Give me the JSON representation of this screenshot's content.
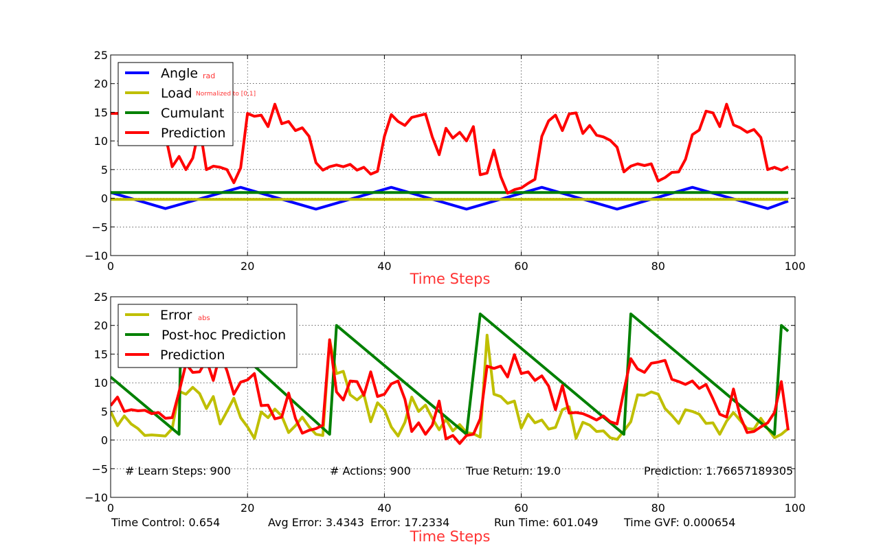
{
  "chart_data": [
    {
      "type": "line",
      "xlabel": "Time Steps",
      "xlim": [
        0,
        100
      ],
      "ylim": [
        -10,
        25
      ],
      "xticks": [
        "0",
        "20",
        "40",
        "60",
        "80",
        "100"
      ],
      "yticks": [
        "−10",
        "−5",
        "0",
        "5",
        "10",
        "15",
        "20",
        "25"
      ],
      "grid": true,
      "legend_position": "top-left",
      "legend": [
        {
          "label": "Angle",
          "sub": "rad"
        },
        {
          "label": "Load",
          "sub": "Normalized to [0,1]"
        },
        {
          "label": "Cumulant",
          "sub": ""
        },
        {
          "label": "Prediction",
          "sub": ""
        }
      ],
      "series": [
        {
          "name": "Angle",
          "color": "#0000ff",
          "style": "triangle",
          "points": [
            [
              0,
              1.0
            ],
            [
              8,
              -1.8
            ],
            [
              19,
              1.9
            ],
            [
              30,
              -1.9
            ],
            [
              41,
              1.9
            ],
            [
              52,
              -1.9
            ],
            [
              63,
              1.9
            ],
            [
              74,
              -1.9
            ],
            [
              85,
              1.9
            ],
            [
              96,
              -1.8
            ],
            [
              99,
              -0.5
            ]
          ]
        },
        {
          "name": "Load",
          "color": "#bfbf00",
          "points": [
            [
              0,
              -0.2
            ],
            [
              99,
              -0.2
            ]
          ]
        },
        {
          "name": "Cumulant",
          "color": "#008000",
          "points": [
            [
              0,
              1.0
            ],
            [
              99,
              1.0
            ]
          ]
        },
        {
          "name": "Prediction",
          "color": "#ff0000",
          "y": [
            14.8,
            14.8,
            14.6,
            14.0,
            13.5,
            13.0,
            12.5,
            12.0,
            11.0,
            5.5,
            7.3,
            5.0,
            7.0,
            12.5,
            5.0,
            5.6,
            5.4,
            5.0,
            2.7,
            5.3,
            14.8,
            14.3,
            14.5,
            12.5,
            16.4,
            13.0,
            13.4,
            11.8,
            12.3,
            10.8,
            6.2,
            4.9,
            5.5,
            5.8,
            5.5,
            5.9,
            4.9,
            5.4,
            4.2,
            4.7,
            10.8,
            14.6,
            13.4,
            12.7,
            14.1,
            14.4,
            14.7,
            10.7,
            7.6,
            12.2,
            10.5,
            11.5,
            10.0,
            12.5,
            4.1,
            4.4,
            8.4,
            3.8,
            0.9,
            1.5,
            1.8,
            2.6,
            3.3,
            10.8,
            13.5,
            14.5,
            11.8,
            14.7,
            14.9,
            11.3,
            12.7,
            11.0,
            10.7,
            10.1,
            8.9,
            4.6,
            5.6,
            6.0,
            5.7,
            6.0,
            3.0,
            3.6,
            4.5,
            4.6,
            6.8,
            11.1,
            11.9,
            15.2,
            14.9,
            12.5,
            16.4,
            12.8,
            12.3,
            11.5,
            12.0,
            10.6,
            5.0,
            5.4,
            4.9,
            5.5
          ]
        }
      ]
    },
    {
      "type": "line",
      "xlabel": "Time Steps",
      "xlim": [
        0,
        100
      ],
      "ylim": [
        -10,
        25
      ],
      "xticks": [
        "0",
        "20",
        "40",
        "60",
        "80",
        "100"
      ],
      "yticks": [
        "−10",
        "−5",
        "0",
        "5",
        "10",
        "15",
        "20",
        "25"
      ],
      "grid": true,
      "legend_position": "top-left",
      "legend": [
        {
          "label": "Error",
          "sub": "abs"
        },
        {
          "label": "Post-hoc Prediction",
          "sub": ""
        },
        {
          "label": "Prediction",
          "sub": ""
        }
      ],
      "series": [
        {
          "name": "Error",
          "color": "#bfbf00",
          "y": [
            5.0,
            2.5,
            4.2,
            2.8,
            2.0,
            0.8,
            0.9,
            0.8,
            0.7,
            2.0,
            8.5,
            8.0,
            9.2,
            8.1,
            5.5,
            7.6,
            2.8,
            5.0,
            7.3,
            3.9,
            2.3,
            0.3,
            4.9,
            3.9,
            5.4,
            4.2,
            1.3,
            2.5,
            4.0,
            2.3,
            1.0,
            0.8,
            17.5,
            11.6,
            12.0,
            7.9,
            7.0,
            8.0,
            3.2,
            6.5,
            5.3,
            2.3,
            0.7,
            3.1,
            7.5,
            5.0,
            6.1,
            3.8,
            1.8,
            3.6,
            1.6,
            2.7,
            1.3,
            1.1,
            0.5,
            18.3,
            8.0,
            7.6,
            6.4,
            6.8,
            2.1,
            4.5,
            3.0,
            3.5,
            1.9,
            2.2,
            5.3,
            5.8,
            0.3,
            3.1,
            2.6,
            1.5,
            1.6,
            0.4,
            0.1,
            1.6,
            3.2,
            7.9,
            7.8,
            8.4,
            8.0,
            5.5,
            4.3,
            2.9,
            5.3,
            5.0,
            4.5,
            2.9,
            3.0,
            1.0,
            3.3,
            4.8,
            3.4,
            2.0,
            1.9,
            3.8,
            2.0,
            0.4,
            1.0,
            2.0
          ]
        },
        {
          "name": "Post-hoc Prediction",
          "color": "#008000",
          "points": [
            [
              0,
              11.0
            ],
            [
              10,
              1.0
            ],
            [
              10.2,
              14.8
            ],
            [
              21,
              12.9
            ],
            [
              32,
              1.0
            ],
            [
              33,
              20.0
            ],
            [
              52,
              1.0
            ],
            [
              54,
              22.0
            ],
            [
              75,
              1.0
            ],
            [
              76,
              22.0
            ],
            [
              97,
              1.0
            ],
            [
              98,
              20.0
            ],
            [
              99,
              19.0
            ]
          ]
        },
        {
          "name": "Prediction",
          "color": "#ff0000",
          "y": [
            6.0,
            7.5,
            5.0,
            5.3,
            5.1,
            5.2,
            4.6,
            4.8,
            3.8,
            3.9,
            8.4,
            13.3,
            11.8,
            11.9,
            14.0,
            10.4,
            15.1,
            12.1,
            8.0,
            10.1,
            10.5,
            11.6,
            6.0,
            6.1,
            3.7,
            4.0,
            8.2,
            3.8,
            1.2,
            1.7,
            2.0,
            2.6,
            17.5,
            8.4,
            7.0,
            10.3,
            10.2,
            7.8,
            11.9,
            7.6,
            8.0,
            9.8,
            10.3,
            7.1,
            1.5,
            3.0,
            1.0,
            2.6,
            6.8,
            0.2,
            0.8,
            -0.6,
            0.8,
            1.0,
            3.7,
            12.9,
            12.5,
            12.9,
            11.0,
            14.9,
            11.6,
            11.9,
            10.4,
            11.2,
            9.4,
            5.3,
            9.5,
            4.7,
            4.8,
            4.6,
            4.1,
            3.5,
            4.2,
            3.2,
            2.8,
            8.6,
            14.2,
            12.4,
            11.8,
            13.4,
            13.6,
            13.9,
            10.6,
            10.2,
            9.7,
            10.3,
            9.0,
            9.7,
            7.2,
            4.5,
            4.0,
            8.9,
            4.1,
            1.3,
            1.5,
            2.3,
            3.0,
            4.8,
            10.2,
            1.7
          ]
        }
      ],
      "annotations": {
        "learn_steps": "# Learn Steps: 900",
        "actions": "# Actions: 900",
        "true_return": "True Return: 19.0",
        "prediction": "Prediction: 1.76657189305",
        "time_control": "Time Control: 0.654",
        "avg_error": "Avg Error: 3.4343",
        "error": "Error: 17.2334",
        "run_time": "Run Time: 601.049",
        "time_gvf": "Time GVF: 0.000654"
      }
    }
  ]
}
